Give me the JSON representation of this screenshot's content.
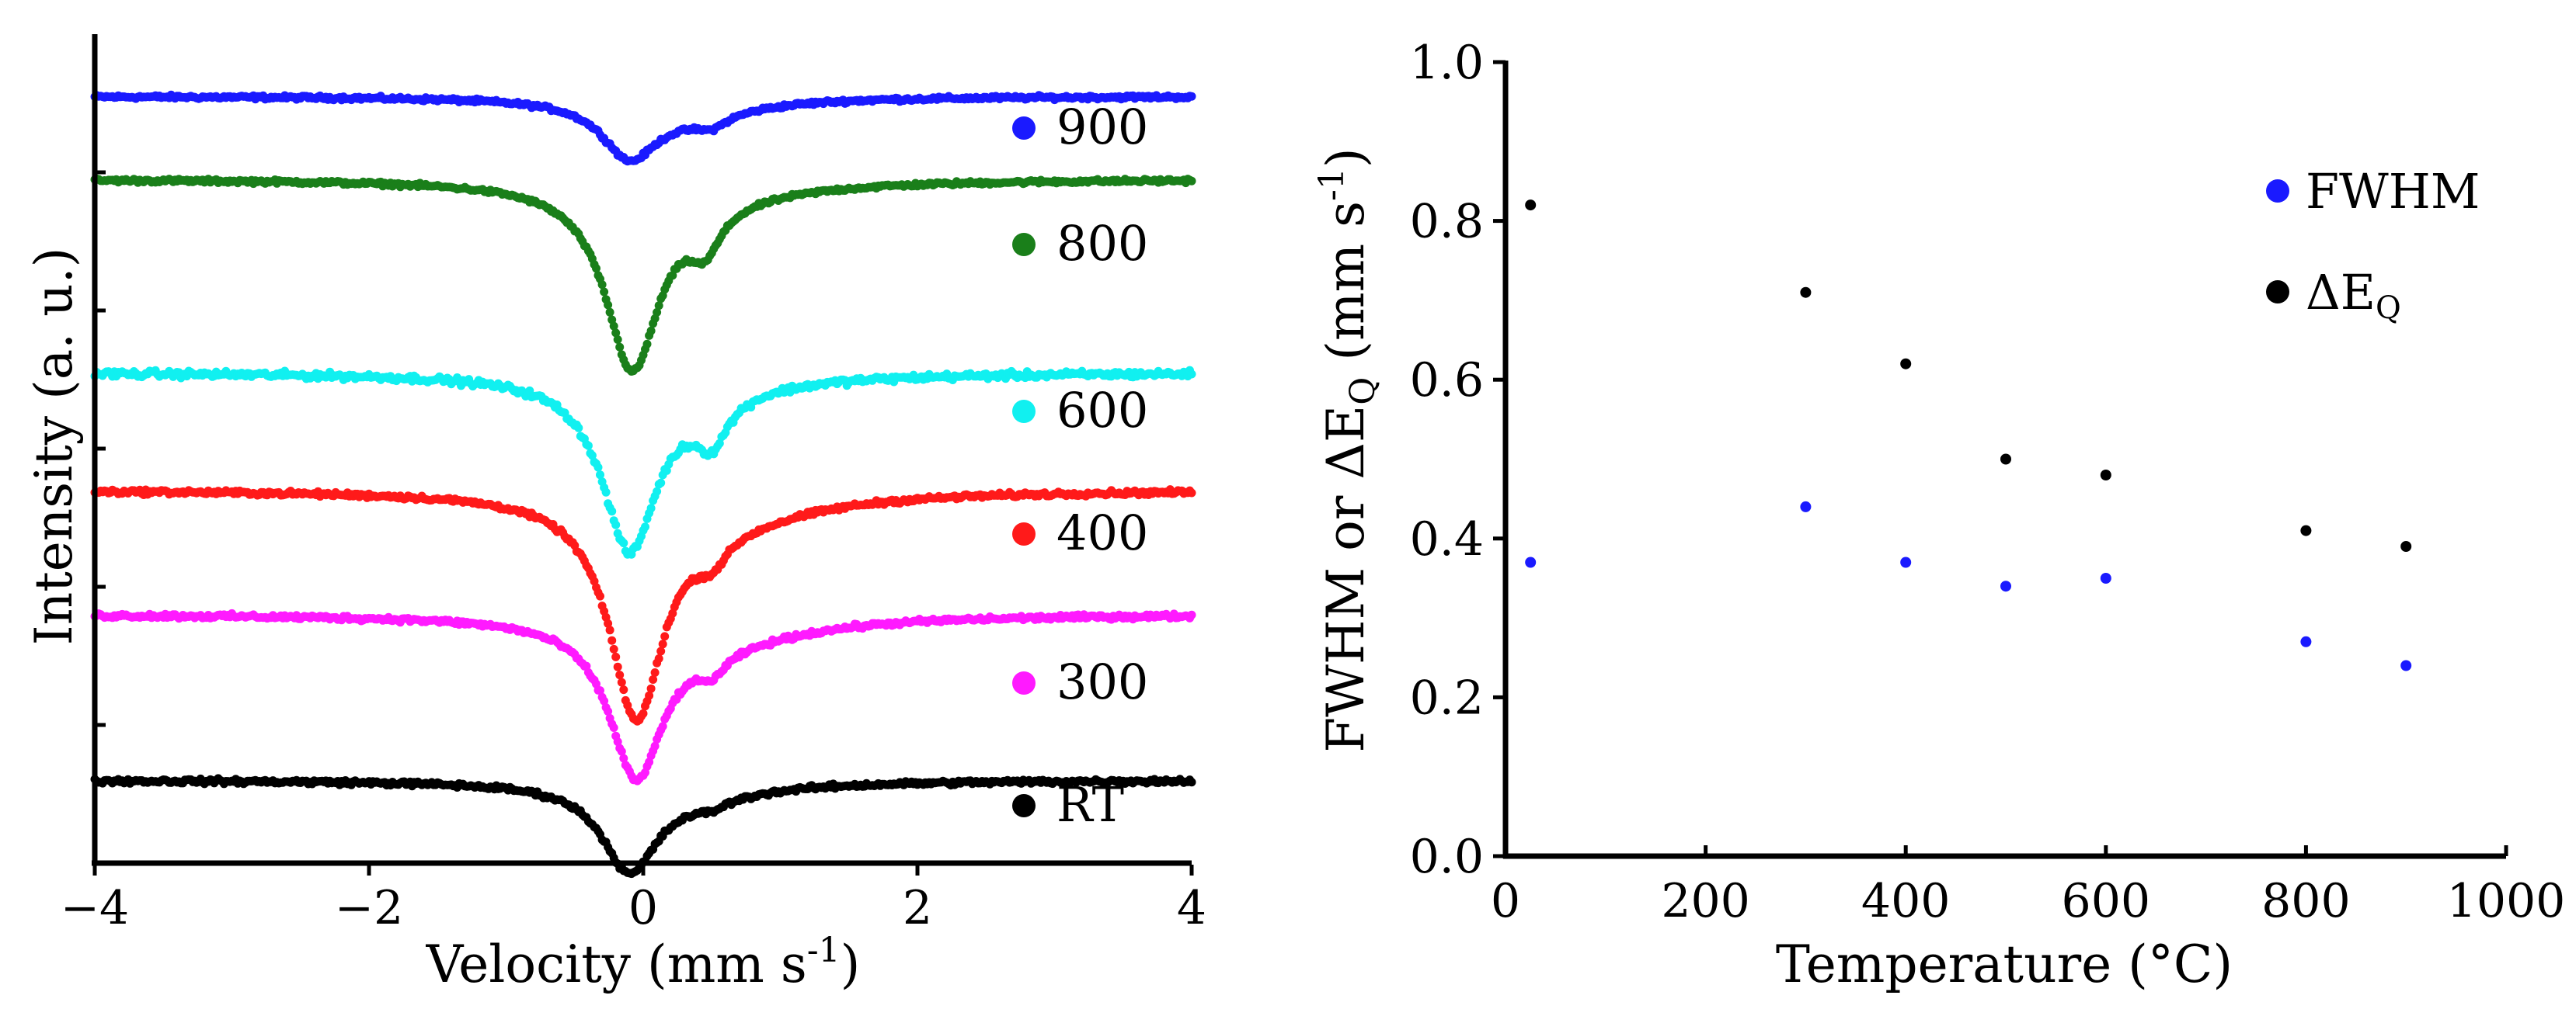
{
  "chart_data": [
    {
      "type": "scatter",
      "title": "",
      "xlabel": "Velocity (mm s",
      "xlabel_sup": "-1",
      "xlabel_end": ")",
      "ylabel": "Intensity (a. u.)",
      "xlim": [
        -4,
        4
      ],
      "ylim": [
        0,
        6
      ],
      "y_ticks_labeled": false,
      "grid": false,
      "legend_position": "right, beside each trace",
      "x_ticks": [
        -4,
        -2,
        0,
        2,
        4
      ],
      "x_tick_labels": [
        "−4",
        "−2",
        "0",
        "2",
        "4"
      ],
      "series": [
        {
          "name": "900",
          "color": "#1a1aff",
          "baseline": 5.55,
          "noise": 0.02,
          "components": [
            {
              "center": -0.1,
              "depth": 0.38,
              "width": 0.24
            },
            {
              "center": 0.5,
              "depth": 0.08,
              "width": 0.14
            },
            {
              "center": 0.3,
              "depth": 0.12,
              "width": 0.6
            }
          ]
        },
        {
          "name": "800",
          "color": "#1a7f1a",
          "baseline": 4.95,
          "noise": 0.02,
          "components": [
            {
              "center": -0.08,
              "depth": 1.3,
              "width": 0.24
            },
            {
              "center": 0.45,
              "depth": 0.28,
              "width": 0.14
            },
            {
              "center": 0.4,
              "depth": 0.1,
              "width": 0.8
            }
          ]
        },
        {
          "name": "600",
          "color": "#11f0f0",
          "baseline": 3.55,
          "noise": 0.035,
          "components": [
            {
              "center": -0.1,
              "depth": 1.2,
              "width": 0.24
            },
            {
              "center": 0.5,
              "depth": 0.3,
              "width": 0.14
            },
            {
              "center": 0.3,
              "depth": 0.12,
              "width": 0.7
            }
          ]
        },
        {
          "name": "400",
          "color": "#ff1a1a",
          "baseline": 2.7,
          "noise": 0.025,
          "components": [
            {
              "center": -0.05,
              "depth": 1.55,
              "width": 0.24
            },
            {
              "center": 0.5,
              "depth": 0.18,
              "width": 0.14
            },
            {
              "center": 0.6,
              "depth": 0.18,
              "width": 0.8
            }
          ]
        },
        {
          "name": "300",
          "color": "#ff1aff",
          "baseline": 1.8,
          "noise": 0.025,
          "components": [
            {
              "center": -0.05,
              "depth": 1.1,
              "width": 0.24
            },
            {
              "center": 0.5,
              "depth": 0.15,
              "width": 0.14
            },
            {
              "center": 0.6,
              "depth": 0.15,
              "width": 0.8
            }
          ]
        },
        {
          "name": "RT",
          "color": "#000000",
          "baseline": 0.6,
          "noise": 0.025,
          "components": [
            {
              "center": -0.1,
              "depth": 0.6,
              "width": 0.24
            },
            {
              "center": 0.5,
              "depth": 0.05,
              "width": 0.14
            },
            {
              "center": 0.3,
              "depth": 0.1,
              "width": 0.7
            }
          ]
        }
      ]
    },
    {
      "type": "scatter",
      "title": "",
      "xlabel": "Temperature (°C)",
      "ylabel": "FWHM or ΔE",
      "ylabel_sub": "Q",
      "ylabel_mid": " (mm s",
      "ylabel_sup": "-1",
      "ylabel_end": ")",
      "xlim": [
        0,
        1000
      ],
      "ylim": [
        0.0,
        1.0
      ],
      "grid": false,
      "legend_position": "top-right",
      "x_ticks": [
        0,
        200,
        400,
        600,
        800,
        1000
      ],
      "x_tick_labels": [
        "0",
        "200",
        "400",
        "600",
        "800",
        "1000"
      ],
      "y_ticks": [
        0.0,
        0.2,
        0.4,
        0.6,
        0.8,
        1.0
      ],
      "y_tick_labels": [
        "0.0",
        "0.2",
        "0.4",
        "0.6",
        "0.8",
        "1.0"
      ],
      "series": [
        {
          "name": "FWHM",
          "color": "#1a1aff",
          "x": [
            25,
            300,
            400,
            500,
            600,
            800,
            900
          ],
          "y": [
            0.37,
            0.44,
            0.37,
            0.34,
            0.35,
            0.27,
            0.24
          ]
        },
        {
          "name": "ΔE",
          "name_sub": "Q",
          "color": "#000000",
          "x": [
            25,
            300,
            400,
            500,
            600,
            800,
            900
          ],
          "y": [
            0.82,
            0.71,
            0.62,
            0.5,
            0.48,
            0.41,
            0.39
          ]
        }
      ]
    }
  ]
}
